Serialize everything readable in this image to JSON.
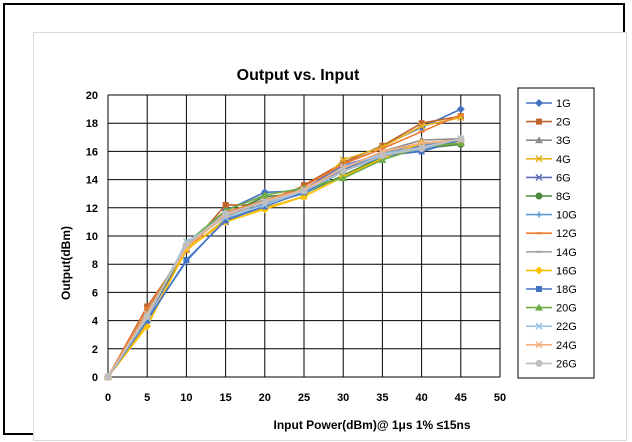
{
  "chart_data": {
    "type": "line",
    "title": "Output vs. Input",
    "xlabel": "Input Power(dBm)@ 1μs 1% ≤15ns",
    "ylabel": "Output(dBm)",
    "xlim": [
      0,
      50
    ],
    "ylim": [
      0,
      20
    ],
    "x_ticks": [
      0,
      5,
      10,
      15,
      20,
      25,
      30,
      35,
      40,
      45,
      50
    ],
    "y_ticks": [
      0,
      2,
      4,
      6,
      8,
      10,
      12,
      14,
      16,
      18,
      20
    ],
    "x": [
      0,
      5,
      10,
      15,
      20,
      25,
      30,
      35,
      40,
      45
    ],
    "grid": true,
    "legend_position": "right",
    "series": [
      {
        "name": "1G",
        "color": "#4472c4",
        "marker": "diamond",
        "values": [
          0,
          4.3,
          9.3,
          11.8,
          13.1,
          13.2,
          15.2,
          16.4,
          17.7,
          19.0
        ]
      },
      {
        "name": "2G",
        "color": "#c0622d",
        "marker": "square",
        "values": [
          0,
          5.0,
          9.0,
          12.2,
          12.2,
          13.6,
          15.2,
          16.4,
          18.0,
          18.5
        ]
      },
      {
        "name": "3G",
        "color": "#8c8c8c",
        "marker": "triangle",
        "values": [
          0,
          4.6,
          9.4,
          11.6,
          12.6,
          13.2,
          14.8,
          16.0,
          16.8,
          16.9
        ]
      },
      {
        "name": "4G",
        "color": "#e5b321",
        "marker": "x",
        "values": [
          0,
          3.8,
          9.0,
          11.2,
          12.0,
          12.8,
          15.4,
          16.3,
          17.8,
          18.4
        ]
      },
      {
        "name": "6G",
        "color": "#5b6fb8",
        "marker": "x",
        "values": [
          0,
          4.2,
          9.1,
          11.0,
          12.3,
          13.3,
          15.0,
          15.8,
          16.4,
          16.8
        ]
      },
      {
        "name": "8G",
        "color": "#4e8a3c",
        "marker": "circle",
        "values": [
          0,
          4.3,
          9.2,
          11.5,
          12.8,
          13.0,
          14.3,
          15.6,
          16.2,
          16.5
        ]
      },
      {
        "name": "10G",
        "color": "#5a9bd5",
        "marker": "plus",
        "values": [
          0,
          4.1,
          8.2,
          11.2,
          12.3,
          13.0,
          14.6,
          15.6,
          16.1,
          16.8
        ]
      },
      {
        "name": "12G",
        "color": "#ed7d31",
        "marker": "dash",
        "values": [
          0,
          4.9,
          9.0,
          11.7,
          12.5,
          13.5,
          15.1,
          16.2,
          17.4,
          18.6
        ]
      },
      {
        "name": "14G",
        "color": "#a5a5a5",
        "marker": "dash",
        "values": [
          0,
          4.5,
          9.3,
          11.4,
          12.4,
          13.1,
          14.7,
          15.9,
          16.5,
          16.9
        ]
      },
      {
        "name": "16G",
        "color": "#ffc000",
        "marker": "diamond",
        "values": [
          0,
          3.6,
          9.1,
          11.0,
          11.9,
          12.8,
          14.2,
          15.5,
          16.6,
          16.8
        ]
      },
      {
        "name": "18G",
        "color": "#4472c4",
        "marker": "square",
        "values": [
          0,
          4.0,
          8.3,
          11.1,
          12.1,
          13.1,
          14.7,
          15.7,
          16.0,
          16.8
        ]
      },
      {
        "name": "20G",
        "color": "#70ad47",
        "marker": "triangle",
        "values": [
          0,
          4.4,
          9.5,
          11.8,
          12.9,
          13.4,
          14.1,
          15.4,
          16.3,
          16.6
        ]
      },
      {
        "name": "22G",
        "color": "#9dc3e6",
        "marker": "x",
        "values": [
          0,
          4.2,
          9.6,
          11.3,
          12.2,
          13.2,
          14.9,
          15.8,
          16.3,
          16.9
        ]
      },
      {
        "name": "24G",
        "color": "#f4b183",
        "marker": "x",
        "values": [
          0,
          4.5,
          9.2,
          11.5,
          12.5,
          13.3,
          14.8,
          16.0,
          16.6,
          16.8
        ]
      },
      {
        "name": "26G",
        "color": "#bfbfbf",
        "marker": "circle",
        "values": [
          0,
          4.3,
          9.4,
          11.6,
          12.4,
          13.2,
          14.6,
          15.7,
          16.2,
          16.9
        ]
      }
    ]
  }
}
